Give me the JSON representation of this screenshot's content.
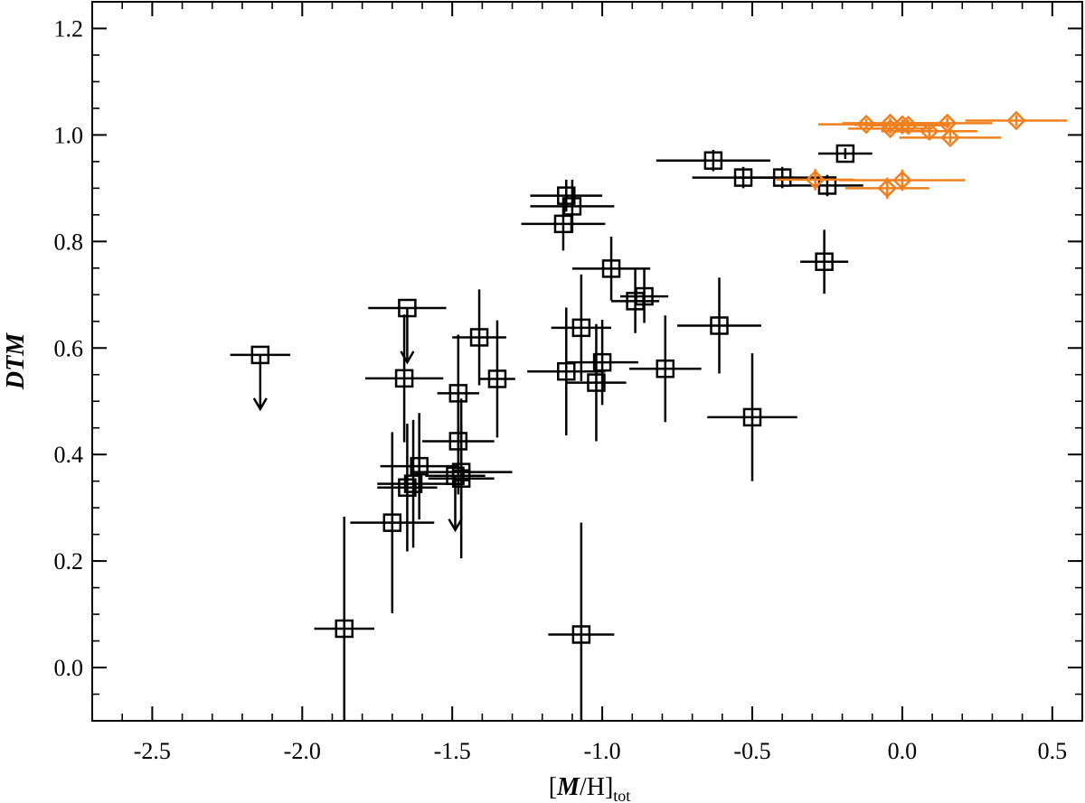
{
  "chart_data": {
    "type": "scatter",
    "title": "",
    "xlabel": {
      "open": "[",
      "italic": "M",
      "rest": "/H]",
      "sub": "tot"
    },
    "ylabel": "DTM",
    "xlim": [
      -2.7,
      0.6
    ],
    "ylim": [
      -0.1,
      1.25
    ],
    "x_ticks": [
      -2.5,
      -2.0,
      -1.5,
      -1.0,
      -0.5,
      0.0,
      0.5
    ],
    "x_tick_labels": [
      "-2.5",
      "-2.0",
      "-1.5",
      "-1.0",
      "-0.5",
      "0.0",
      "0.5"
    ],
    "y_ticks": [
      0.0,
      0.2,
      0.4,
      0.6,
      0.8,
      1.0,
      1.2
    ],
    "y_tick_labels": [
      "0.0",
      "0.2",
      "0.4",
      "0.6",
      "0.8",
      "1.0",
      "1.2"
    ],
    "x_minor_step": 0.1,
    "y_minor_step": 0.05,
    "grid": false,
    "legend": "none",
    "series": [
      {
        "marker": "square",
        "color": "#000000",
        "points": [
          {
            "x": -2.14,
            "y": 0.587,
            "xerr": 0.1,
            "yerr": 0,
            "upper_limit": true
          },
          {
            "x": -1.65,
            "y": 0.675,
            "xerr": 0.13,
            "yerr": 0,
            "upper_limit": true
          },
          {
            "x": -1.49,
            "y": 0.36,
            "xerr": 0.1,
            "yerr": 0,
            "upper_limit": true
          },
          {
            "x": -1.86,
            "y": 0.073,
            "xerr": 0.1,
            "yerr": 0.21
          },
          {
            "x": -1.7,
            "y": 0.272,
            "xerr": 0.14,
            "yerr": 0.17
          },
          {
            "x": -1.66,
            "y": 0.543,
            "xerr": 0.13,
            "yerr": 0.12
          },
          {
            "x": -1.65,
            "y": 0.338,
            "xerr": 0.1,
            "yerr": 0.12
          },
          {
            "x": -1.63,
            "y": 0.345,
            "xerr": 0.12,
            "yerr": 0.12
          },
          {
            "x": -1.61,
            "y": 0.378,
            "xerr": 0.13,
            "yerr": 0.1
          },
          {
            "x": -1.48,
            "y": 0.425,
            "xerr": 0.12,
            "yerr": 0.1
          },
          {
            "x": -1.48,
            "y": 0.515,
            "xerr": 0.07,
            "yerr": 0.11
          },
          {
            "x": -1.47,
            "y": 0.367,
            "xerr": 0.17,
            "yerr": 0.09
          },
          {
            "x": -1.47,
            "y": 0.355,
            "xerr": 0.11,
            "yerr": 0.15
          },
          {
            "x": -1.41,
            "y": 0.62,
            "xerr": 0.09,
            "yerr": 0.09
          },
          {
            "x": -1.35,
            "y": 0.542,
            "xerr": 0.06,
            "yerr": 0.11
          },
          {
            "x": -1.13,
            "y": 0.833,
            "xerr": 0.14,
            "yerr": 0.05
          },
          {
            "x": -1.12,
            "y": 0.886,
            "xerr": 0.12,
            "yerr": 0.03
          },
          {
            "x": -1.1,
            "y": 0.866,
            "xerr": 0.14,
            "yerr": 0.05
          },
          {
            "x": -1.12,
            "y": 0.556,
            "xerr": 0.13,
            "yerr": 0.12
          },
          {
            "x": -1.07,
            "y": 0.638,
            "xerr": 0.1,
            "yerr": 0.1
          },
          {
            "x": -1.0,
            "y": 0.573,
            "xerr": 0.12,
            "yerr": 0.08
          },
          {
            "x": -1.02,
            "y": 0.535,
            "xerr": 0.1,
            "yerr": 0.11
          },
          {
            "x": -0.97,
            "y": 0.749,
            "xerr": 0.13,
            "yerr": 0.06
          },
          {
            "x": -0.89,
            "y": 0.688,
            "xerr": 0.08,
            "yerr": 0.06
          },
          {
            "x": -0.86,
            "y": 0.697,
            "xerr": 0.08,
            "yerr": 0.05
          },
          {
            "x": -0.79,
            "y": 0.561,
            "xerr": 0.12,
            "yerr": 0.1
          },
          {
            "x": -0.61,
            "y": 0.642,
            "xerr": 0.14,
            "yerr": 0.09
          },
          {
            "x": -0.5,
            "y": 0.47,
            "xerr": 0.15,
            "yerr": 0.12
          },
          {
            "x": -1.07,
            "y": 0.062,
            "xerr": 0.11,
            "yerr": 0.21
          },
          {
            "x": -0.63,
            "y": 0.952,
            "xerr": 0.19,
            "yerr": 0.02
          },
          {
            "x": -0.53,
            "y": 0.92,
            "xerr": 0.17,
            "yerr": 0.02
          },
          {
            "x": -0.4,
            "y": 0.92,
            "xerr": 0.15,
            "yerr": 0.02
          },
          {
            "x": -0.25,
            "y": 0.905,
            "xerr": 0.12,
            "yerr": 0.02
          },
          {
            "x": -0.19,
            "y": 0.965,
            "xerr": 0.09,
            "yerr": 0.01
          },
          {
            "x": -0.26,
            "y": 0.762,
            "xerr": 0.08,
            "yerr": 0.06
          }
        ]
      },
      {
        "marker": "diamond",
        "color": "#f07f1e",
        "points": [
          {
            "x": -0.12,
            "y": 1.02,
            "xerr": 0.16,
            "yerr": 0.01
          },
          {
            "x": -0.04,
            "y": 1.022,
            "xerr": 0.16,
            "yerr": 0.01
          },
          {
            "x": -0.04,
            "y": 1.012,
            "xerr": 0.14,
            "yerr": 0.01
          },
          {
            "x": 0.0,
            "y": 1.019,
            "xerr": 0.16,
            "yerr": 0.01
          },
          {
            "x": 0.02,
            "y": 1.018,
            "xerr": 0.14,
            "yerr": 0.01
          },
          {
            "x": 0.09,
            "y": 1.007,
            "xerr": 0.16,
            "yerr": 0.01
          },
          {
            "x": 0.15,
            "y": 1.022,
            "xerr": 0.15,
            "yerr": 0.01
          },
          {
            "x": 0.16,
            "y": 0.995,
            "xerr": 0.17,
            "yerr": 0.01
          },
          {
            "x": 0.38,
            "y": 1.027,
            "xerr": 0.17,
            "yerr": 0.01
          },
          {
            "x": -0.29,
            "y": 0.916,
            "xerr": 0.13,
            "yerr": 0.02
          },
          {
            "x": -0.05,
            "y": 0.9,
            "xerr": 0.14,
            "yerr": 0.02
          },
          {
            "x": 0.0,
            "y": 0.915,
            "xerr": 0.21,
            "yerr": 0.02
          }
        ]
      }
    ]
  }
}
